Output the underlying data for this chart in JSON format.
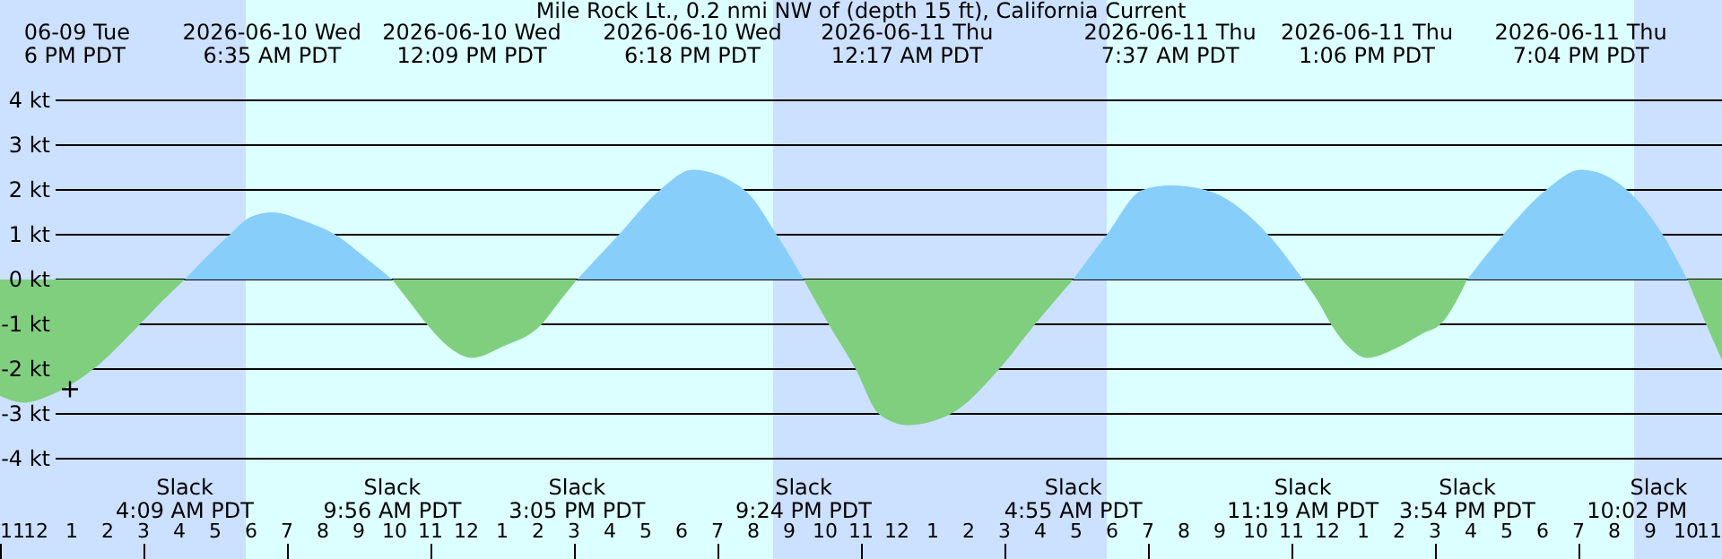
{
  "chart_data": {
    "type": "area",
    "title": "Mile Rock Lt., 0.2 nmi NW of (depth 15 ft), California Current",
    "xlim": [
      "2026-06-09T23:00",
      "2026-06-11T23:00"
    ],
    "xticks": [
      {
        "value": "2026-06-09T23:00",
        "label": "11"
      },
      {
        "value": "2026-06-10T00:00",
        "label": "12"
      },
      {
        "value": "2026-06-10T01:00",
        "label": "1"
      },
      {
        "value": "2026-06-10T02:00",
        "label": "2"
      },
      {
        "value": "2026-06-10T03:00",
        "label": "3"
      },
      {
        "value": "2026-06-10T04:00",
        "label": "4"
      },
      {
        "value": "2026-06-10T05:00",
        "label": "5"
      },
      {
        "value": "2026-06-10T06:00",
        "label": "6"
      },
      {
        "value": "2026-06-10T07:00",
        "label": "7"
      },
      {
        "value": "2026-06-10T08:00",
        "label": "8"
      },
      {
        "value": "2026-06-10T09:00",
        "label": "9"
      },
      {
        "value": "2026-06-10T10:00",
        "label": "10"
      },
      {
        "value": "2026-06-10T11:00",
        "label": "11"
      },
      {
        "value": "2026-06-10T12:00",
        "label": "12"
      },
      {
        "value": "2026-06-10T13:00",
        "label": "1"
      },
      {
        "value": "2026-06-10T14:00",
        "label": "2"
      },
      {
        "value": "2026-06-10T15:00",
        "label": "3"
      },
      {
        "value": "2026-06-10T16:00",
        "label": "4"
      },
      {
        "value": "2026-06-10T17:00",
        "label": "5"
      },
      {
        "value": "2026-06-10T18:00",
        "label": "6"
      },
      {
        "value": "2026-06-10T19:00",
        "label": "7"
      },
      {
        "value": "2026-06-10T20:00",
        "label": "8"
      },
      {
        "value": "2026-06-10T21:00",
        "label": "9"
      },
      {
        "value": "2026-06-10T22:00",
        "label": "10"
      },
      {
        "value": "2026-06-10T23:00",
        "label": "11"
      },
      {
        "value": "2026-06-11T00:00",
        "label": "12"
      },
      {
        "value": "2026-06-11T01:00",
        "label": "1"
      },
      {
        "value": "2026-06-11T02:00",
        "label": "2"
      },
      {
        "value": "2026-06-11T03:00",
        "label": "3"
      },
      {
        "value": "2026-06-11T04:00",
        "label": "4"
      },
      {
        "value": "2026-06-11T05:00",
        "label": "5"
      },
      {
        "value": "2026-06-11T06:00",
        "label": "6"
      },
      {
        "value": "2026-06-11T07:00",
        "label": "7"
      },
      {
        "value": "2026-06-11T08:00",
        "label": "8"
      },
      {
        "value": "2026-06-11T09:00",
        "label": "9"
      },
      {
        "value": "2026-06-11T10:00",
        "label": "10"
      },
      {
        "value": "2026-06-11T11:00",
        "label": "11"
      },
      {
        "value": "2026-06-11T12:00",
        "label": "12"
      },
      {
        "value": "2026-06-11T13:00",
        "label": "1"
      },
      {
        "value": "2026-06-11T14:00",
        "label": "2"
      },
      {
        "value": "2026-06-11T15:00",
        "label": "3"
      },
      {
        "value": "2026-06-11T16:00",
        "label": "4"
      },
      {
        "value": "2026-06-11T17:00",
        "label": "5"
      },
      {
        "value": "2026-06-11T18:00",
        "label": "6"
      },
      {
        "value": "2026-06-11T19:00",
        "label": "7"
      },
      {
        "value": "2026-06-11T20:00",
        "label": "8"
      },
      {
        "value": "2026-06-11T21:00",
        "label": "9"
      },
      {
        "value": "2026-06-11T22:00",
        "label": "10"
      },
      {
        "value": "2026-06-11T23:00",
        "label": "11"
      }
    ],
    "ylim": [
      -6.24,
      6.24
    ],
    "yticks": [
      {
        "value": -4,
        "label": "-4 kt"
      },
      {
        "value": -3,
        "label": "-3 kt"
      },
      {
        "value": -2,
        "label": "-2 kt"
      },
      {
        "value": -1,
        "label": "-1 kt"
      },
      {
        "value": 0,
        "label": "0 kt"
      },
      {
        "value": 1,
        "label": "1 kt"
      },
      {
        "value": 2,
        "label": "2 kt"
      },
      {
        "value": 3,
        "label": "3 kt"
      },
      {
        "value": 4,
        "label": "4 kt"
      }
    ],
    "grid": "y",
    "bands": [
      {
        "axis": "x",
        "from": "2026-06-09T23:00",
        "to": "2026-06-10T05:51",
        "color": "#cce0ff"
      },
      {
        "axis": "x",
        "from": "2026-06-10T20:33",
        "to": "2026-06-11T05:51",
        "color": "#cce0ff"
      },
      {
        "axis": "x",
        "from": "2026-06-11T20:33",
        "to": "2026-06-11T23:00",
        "color": "#cce0ff"
      }
    ],
    "series": [
      {
        "type": "area",
        "color": "#7fcf7f",
        "x": [
          "2026-06-09T23:00",
          "2026-06-09T23:40",
          "2026-06-10T00:30",
          "2026-06-10T01:36",
          "2026-06-10T02:54",
          "2026-06-10T03:30",
          "2026-06-10T04:09"
        ],
        "values": [
          -2.6,
          -2.75,
          -2.55,
          -2,
          -1,
          -0.5,
          0
        ]
      },
      {
        "type": "area",
        "color": "#87cefa",
        "x": [
          "2026-06-10T04:09",
          "2026-06-10T04:45",
          "2026-06-10T05:24",
          "2026-06-10T06:00",
          "2026-06-10T06:35",
          "2026-06-10T07:30",
          "2026-06-10T08:21",
          "2026-06-10T09:10",
          "2026-06-10T09:56"
        ],
        "values": [
          0,
          0.5,
          1,
          1.4,
          1.5,
          1.3,
          1,
          0.5,
          0
        ]
      },
      {
        "type": "area",
        "color": "#7fcf7f",
        "x": [
          "2026-06-10T09:56",
          "2026-06-10T10:25",
          "2026-06-10T10:54",
          "2026-06-10T11:30",
          "2026-06-10T12:09",
          "2026-06-10T13:00",
          "2026-06-10T14:06",
          "2026-06-10T14:35",
          "2026-06-10T15:05"
        ],
        "values": [
          0,
          -0.5,
          -1,
          -1.5,
          -1.75,
          -1.5,
          -1,
          -0.5,
          0
        ]
      },
      {
        "type": "area",
        "color": "#87cefa",
        "x": [
          "2026-06-10T15:05",
          "2026-06-10T15:40",
          "2026-06-10T16:15",
          "2026-06-10T17:24",
          "2026-06-10T18:18",
          "2026-06-10T19:45",
          "2026-06-10T20:39",
          "2026-06-10T21:24"
        ],
        "values": [
          0,
          0.5,
          1,
          2,
          2.45,
          2,
          1,
          0
        ]
      },
      {
        "type": "area",
        "color": "#7fcf7f",
        "x": [
          "2026-06-10T21:24",
          "2026-06-10T22:06",
          "2026-06-10T22:51",
          "2026-06-10T23:30",
          "2026-06-11T00:17",
          "2026-06-11T01:30",
          "2026-06-11T02:51",
          "2026-06-11T03:51",
          "2026-06-11T04:55"
        ],
        "values": [
          0,
          -1,
          -2,
          -3,
          -3.25,
          -3,
          -2,
          -1,
          0
        ]
      },
      {
        "type": "area",
        "color": "#87cefa",
        "x": [
          "2026-06-11T04:55",
          "2026-06-11T05:51",
          "2026-06-11T06:51",
          "2026-06-11T07:37",
          "2026-06-11T08:36",
          "2026-06-11T10:21",
          "2026-06-11T11:19"
        ],
        "values": [
          0,
          1,
          2,
          2.1,
          2,
          1,
          0
        ]
      },
      {
        "type": "area",
        "color": "#7fcf7f",
        "x": [
          "2026-06-11T11:19",
          "2026-06-11T11:45",
          "2026-06-11T12:06",
          "2026-06-11T12:35",
          "2026-06-11T13:06",
          "2026-06-11T14:00",
          "2026-06-11T14:40",
          "2026-06-11T15:09",
          "2026-06-11T15:54"
        ],
        "values": [
          0,
          -0.5,
          -1,
          -1.5,
          -1.75,
          -1.5,
          -1.2,
          -1,
          0
        ]
      },
      {
        "type": "area",
        "color": "#87cefa",
        "x": [
          "2026-06-11T15:54",
          "2026-06-11T16:54",
          "2026-06-11T18:06",
          "2026-06-11T19:04",
          "2026-06-11T20:21",
          "2026-06-11T21:21",
          "2026-06-11T22:02"
        ],
        "values": [
          0,
          1,
          2,
          2.45,
          2,
          1,
          0
        ]
      },
      {
        "type": "area",
        "color": "#7fcf7f",
        "x": [
          "2026-06-11T22:02",
          "2026-06-11T22:40",
          "2026-06-11T23:00"
        ],
        "values": [
          0,
          -1.2,
          -1.8
        ]
      },
      {
        "type": "scatter",
        "color": "#000000",
        "marker": "cross",
        "x": [
          "2026-06-10T00:57"
        ],
        "values": [
          -2.45
        ]
      }
    ],
    "annotations": [
      "06-09 Tue\n6 PM PDT",
      "2026-06-10 Wed\n6:35 AM PDT",
      "2026-06-10 Wed\n12:09 PM PDT",
      "2026-06-10 Wed\n6:18 PM PDT",
      "2026-06-11 Thu\n12:17 AM PDT",
      "2026-06-11 Thu\n7:37 AM PDT",
      "2026-06-11 Thu\n1:06 PM PDT",
      "2026-06-11 Thu\n7:04 PM PDT",
      "Slack\n4:09 AM PDT",
      "Slack\n9:56 AM PDT",
      "Slack\n3:05 PM PDT",
      "Slack\n9:24 PM PDT",
      "Slack\n4:55 AM PDT",
      "Slack\n11:19 AM PDT",
      "Slack\n3:54 PM PDT",
      "Slack\n10:02 PM"
    ]
  }
}
